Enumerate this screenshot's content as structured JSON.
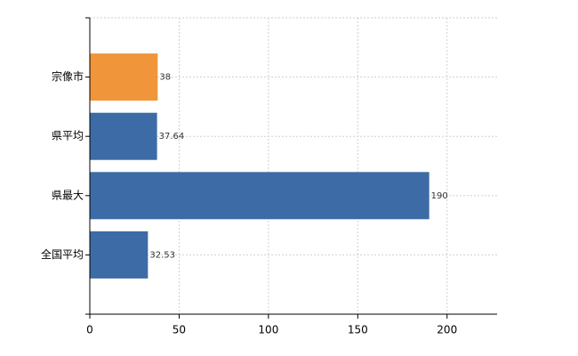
{
  "chart_data": {
    "type": "hbar",
    "categories": [
      "宗像市",
      "県平均",
      "県最大",
      "全国平均"
    ],
    "values": [
      38,
      37.64,
      190,
      32.53
    ],
    "colors": [
      "#f0953a",
      "#3d6ba6",
      "#3d6ba6",
      "#3d6ba6"
    ],
    "xlim": [
      0,
      228
    ],
    "xticks": [
      0,
      50,
      100,
      150,
      200
    ],
    "grid": true
  }
}
